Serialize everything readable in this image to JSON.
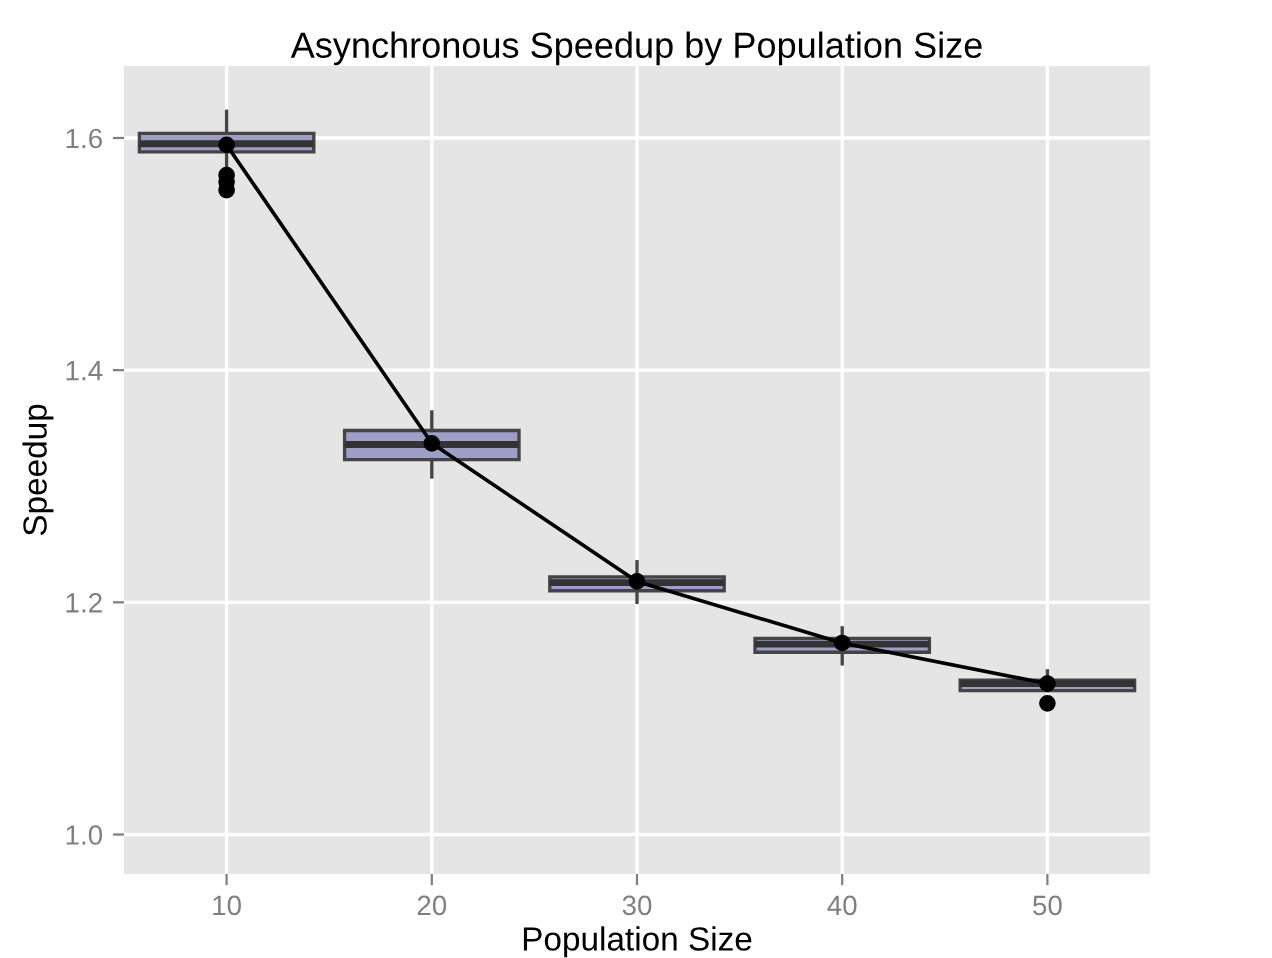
{
  "chart_data": {
    "type": "box",
    "title": "Asynchronous Speedup by Population Size",
    "xlabel": "Population Size",
    "ylabel": "Speedup",
    "categories": [
      "10",
      "20",
      "30",
      "40",
      "50"
    ],
    "boxes": [
      {
        "low": 1.572,
        "q1": 1.588,
        "median": 1.595,
        "q3": 1.604,
        "high": 1.623,
        "outliers": [
          1.568,
          1.562,
          1.555
        ]
      },
      {
        "low": 1.308,
        "q1": 1.323,
        "median": 1.336,
        "q3": 1.348,
        "high": 1.364
      },
      {
        "low": 1.2,
        "q1": 1.21,
        "median": 1.217,
        "q3": 1.222,
        "high": 1.235
      },
      {
        "low": 1.147,
        "q1": 1.157,
        "median": 1.164,
        "q3": 1.169,
        "high": 1.178
      },
      {
        "low": 1.124,
        "q1": 1.124,
        "median": 1.13,
        "q3": 1.133,
        "high": 1.141,
        "outliers": [
          1.113
        ]
      }
    ],
    "color": "#9e9ec6",
    "series": [
      {
        "type": "line",
        "x": [
          "10",
          "20",
          "30",
          "40",
          "50"
        ],
        "values": [
          1.594,
          1.337,
          1.218,
          1.165,
          1.13
        ],
        "color": "#000000"
      }
    ],
    "marker": "circle",
    "line_style": "solid",
    "ylim": [
      0.966,
      1.662
    ],
    "yticks": [
      {
        "value": 1,
        "label": "1.0"
      },
      1.2,
      1.4,
      1.6
    ],
    "grid": true
  }
}
